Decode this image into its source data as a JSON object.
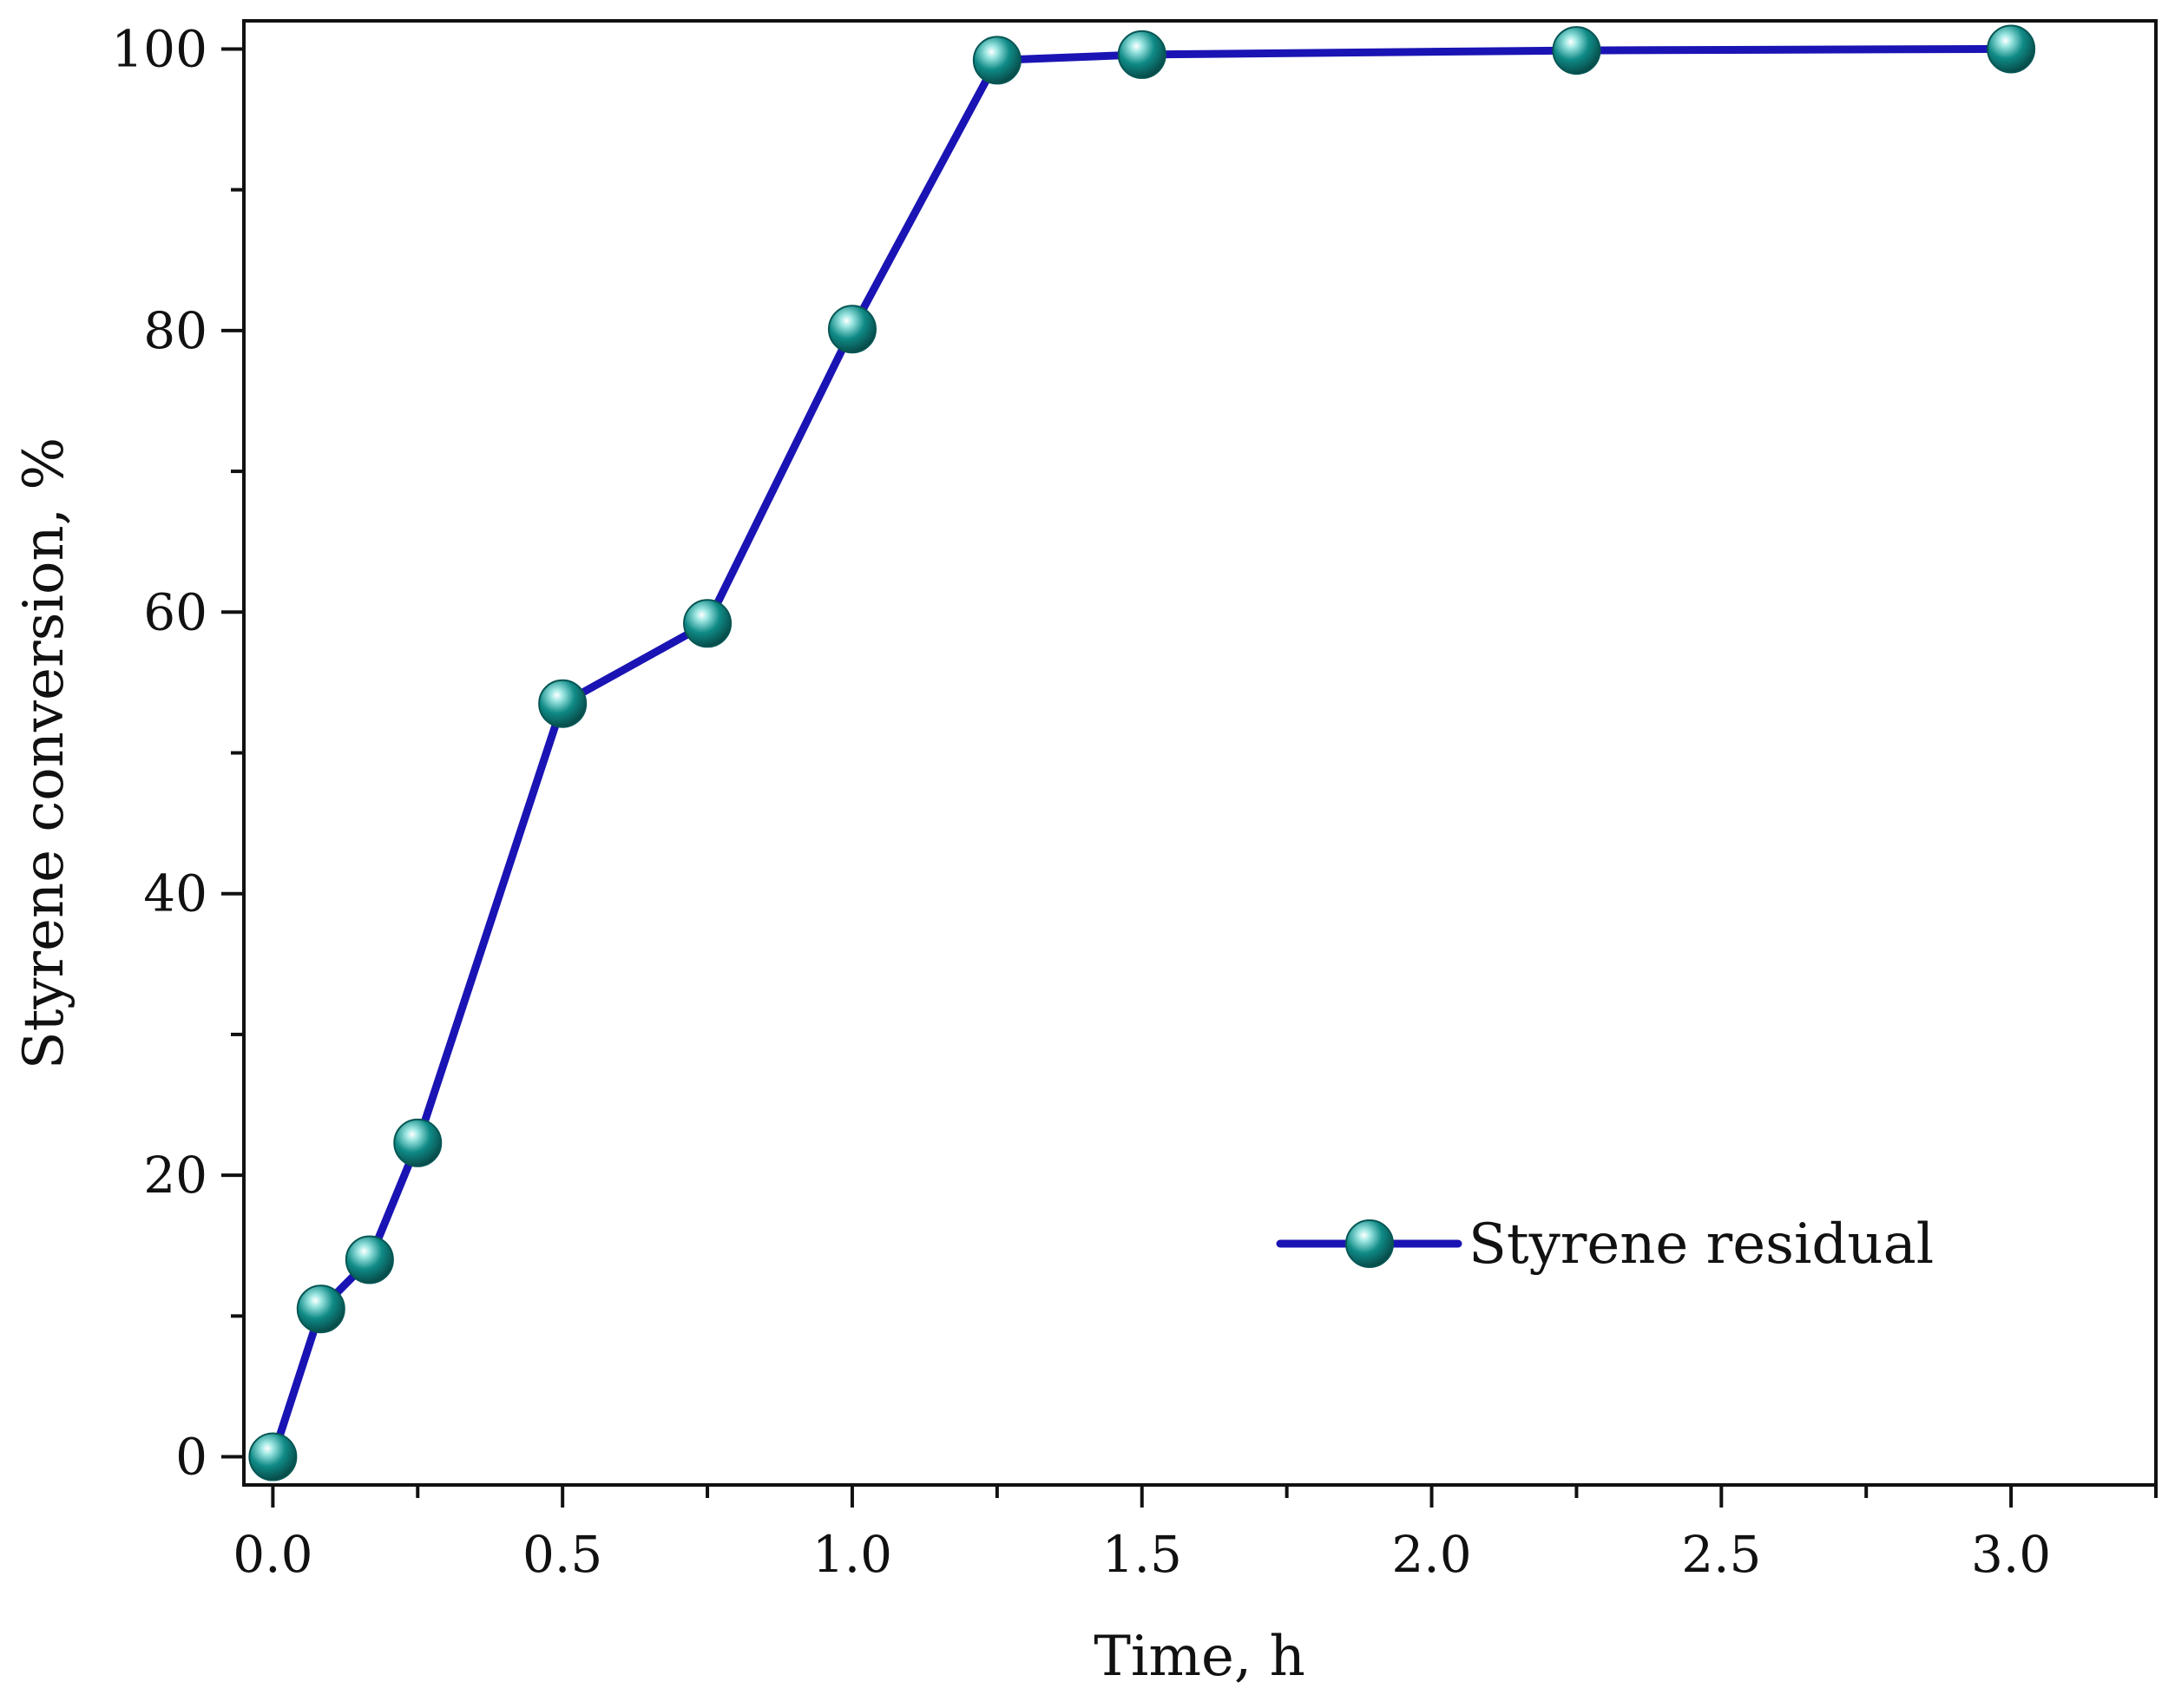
{
  "chart_data": {
    "type": "line",
    "title": "",
    "xlabel": "Time, h",
    "ylabel": "Styrene conversion, %",
    "xlim": [
      -0.05,
      3.25
    ],
    "ylim": [
      -2,
      102
    ],
    "x_major_ticks": [
      0.0,
      0.5,
      1.0,
      1.5,
      2.0,
      2.5,
      3.0
    ],
    "x_tick_labels": [
      "0.0",
      "0.5",
      "1.0",
      "1.5",
      "2.0",
      "2.5",
      "3.0"
    ],
    "x_minor_ticks": [
      0.25,
      0.75,
      1.25,
      1.75,
      2.25,
      2.75,
      3.25
    ],
    "y_major_ticks": [
      0,
      20,
      40,
      60,
      80,
      100
    ],
    "y_tick_labels": [
      "0",
      "20",
      "40",
      "60",
      "80",
      "100"
    ],
    "y_minor_ticks": [
      10,
      30,
      50,
      70,
      90
    ],
    "grid": false,
    "legend_position": "lower-right",
    "series": [
      {
        "name": "Styrene residual",
        "line_color": "#1a14b4",
        "marker_color": "#0f8a86",
        "x": [
          0,
          0.083,
          0.167,
          0.25,
          0.5,
          0.75,
          1.0,
          1.25,
          1.5,
          2.25,
          3.0
        ],
        "y": [
          0,
          10.5,
          14,
          22.3,
          53.5,
          59.2,
          80.1,
          99.2,
          99.6,
          99.9,
          100
        ]
      }
    ]
  }
}
